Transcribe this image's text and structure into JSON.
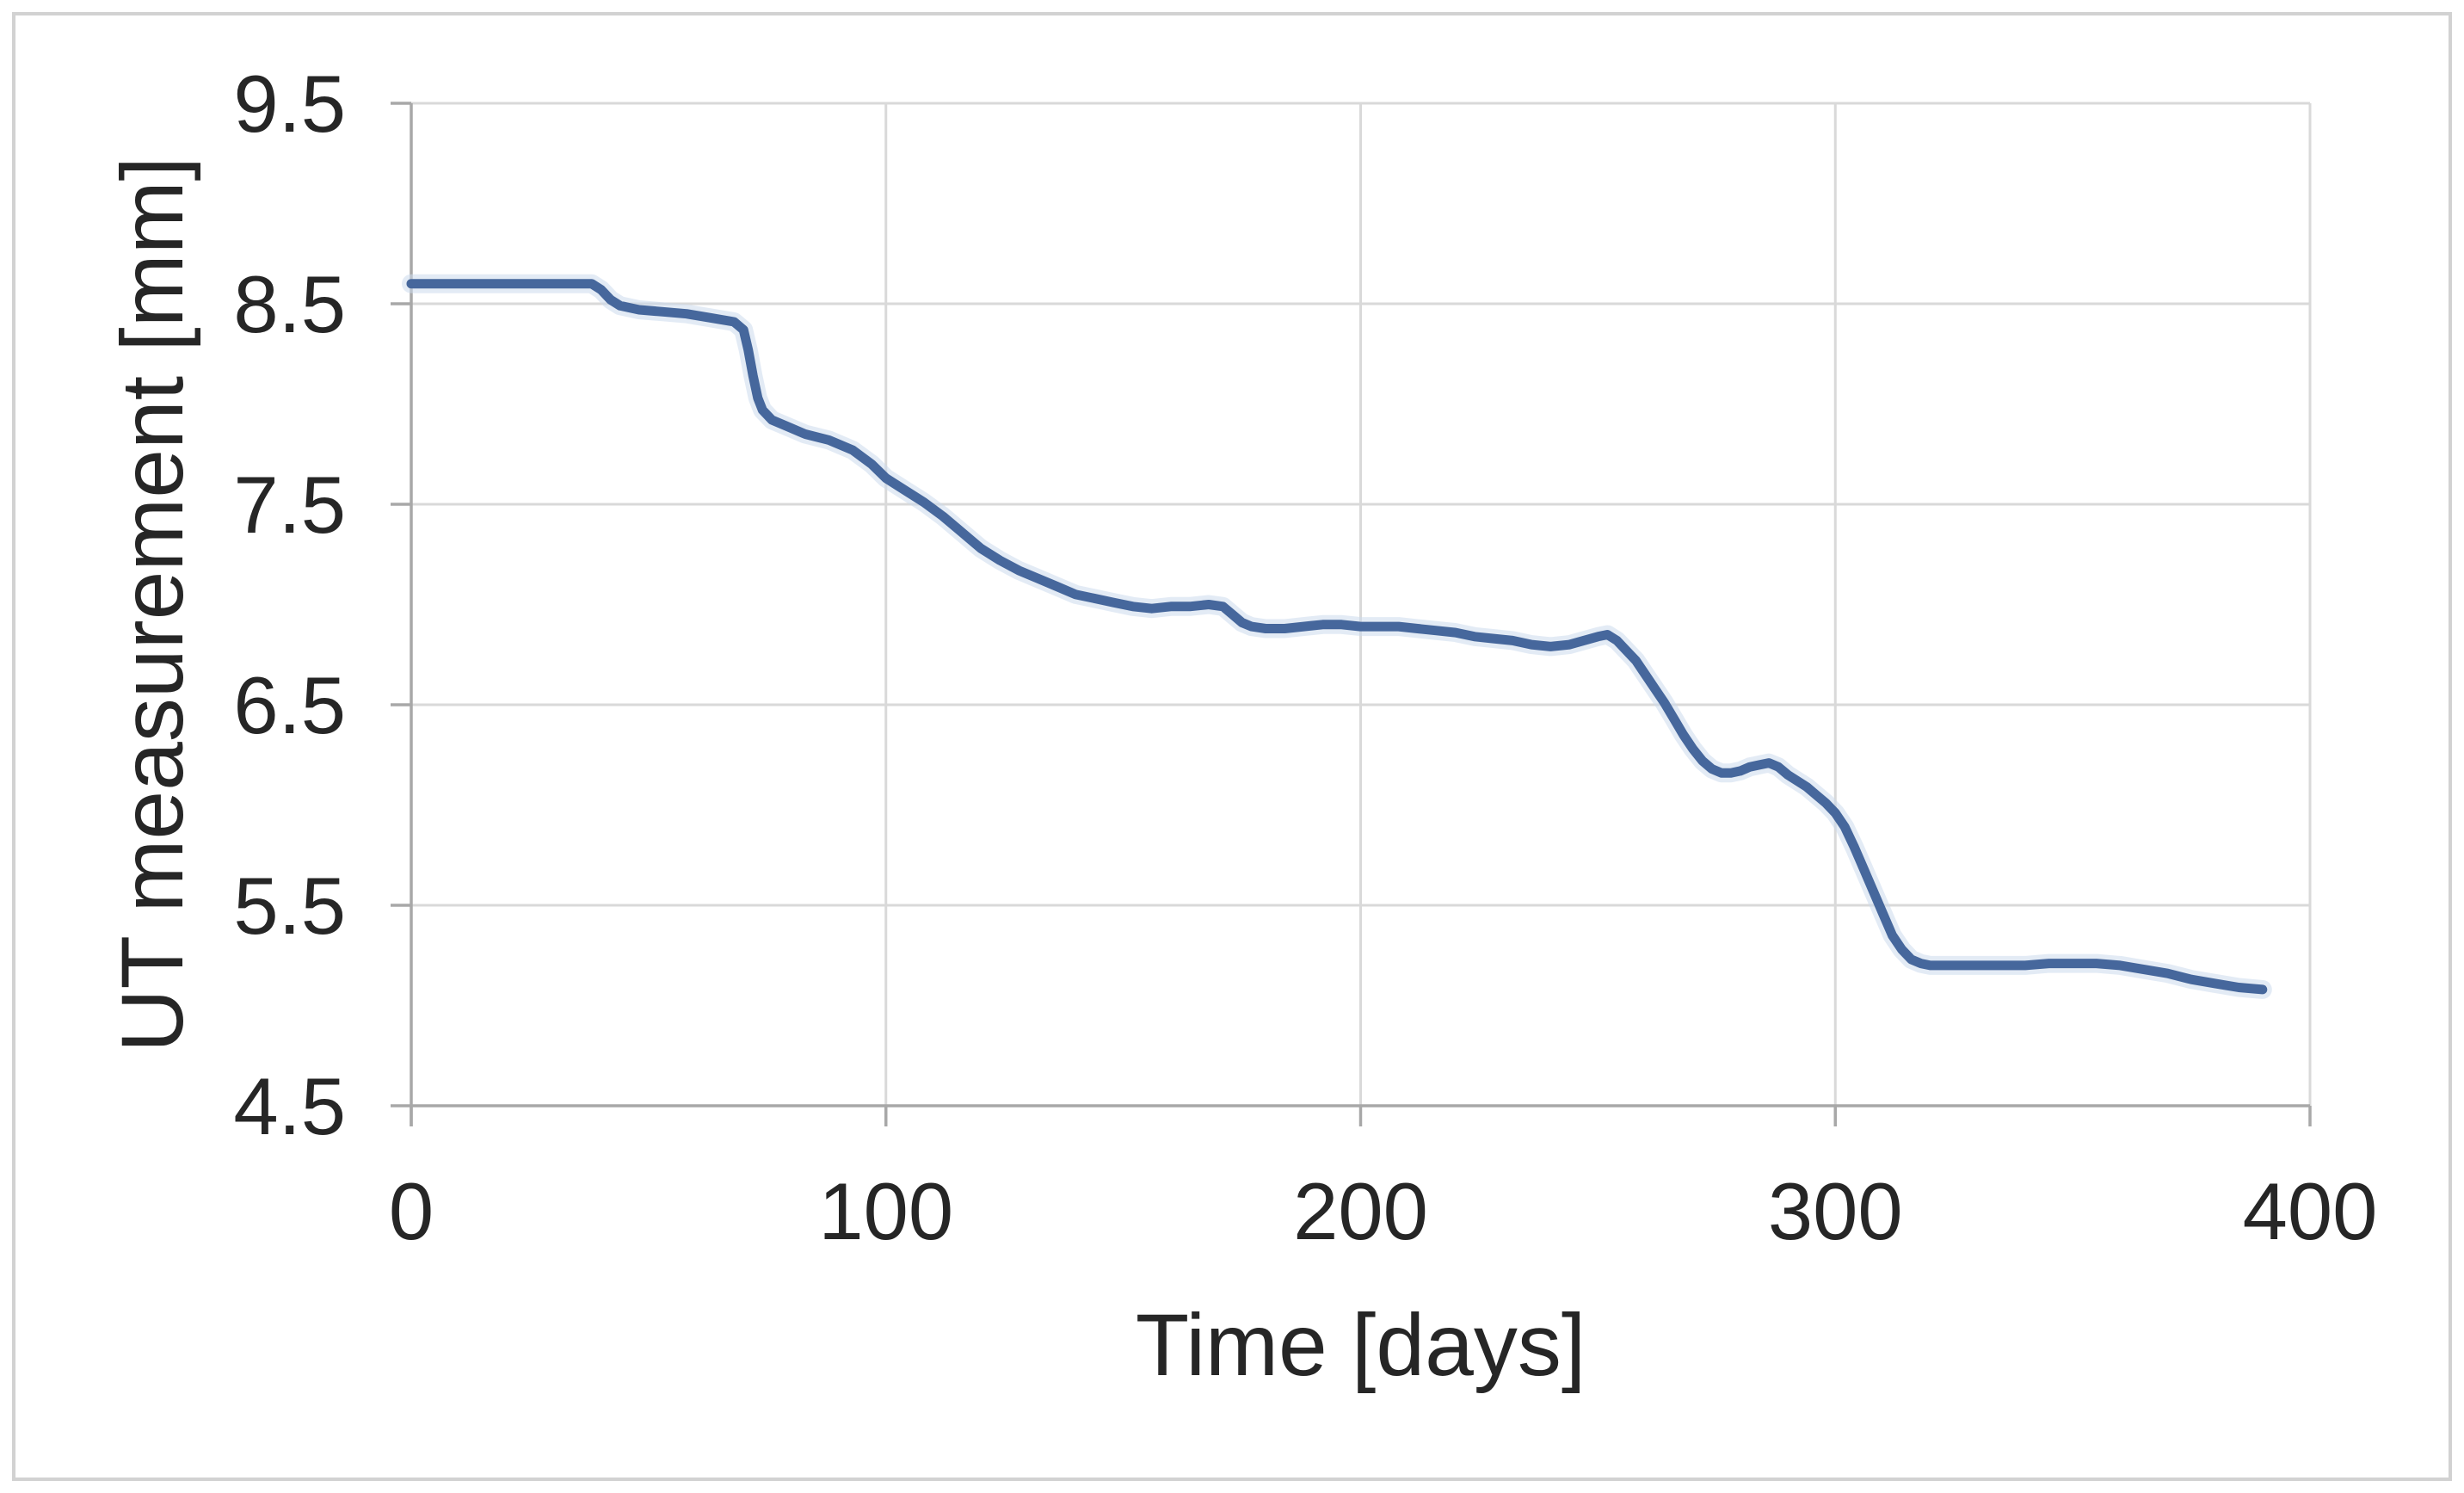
{
  "chart_data": {
    "type": "line",
    "title": "",
    "xlabel": "Time [days]",
    "ylabel": "UT measurement [mm]",
    "xlim": [
      0,
      400
    ],
    "ylim": [
      4.5,
      9.5
    ],
    "x_ticks": [
      0,
      100,
      200,
      300,
      400
    ],
    "y_ticks": [
      4.5,
      5.5,
      6.5,
      7.5,
      8.5,
      9.5
    ],
    "grid": true,
    "legend": false,
    "series": [
      {
        "name": "UT measurement",
        "points": [
          [
            0,
            8.6
          ],
          [
            10,
            8.6
          ],
          [
            20,
            8.6
          ],
          [
            30,
            8.6
          ],
          [
            38,
            8.6
          ],
          [
            40,
            8.57
          ],
          [
            42,
            8.52
          ],
          [
            44,
            8.49
          ],
          [
            48,
            8.47
          ],
          [
            53,
            8.46
          ],
          [
            58,
            8.45
          ],
          [
            63,
            8.43
          ],
          [
            68,
            8.41
          ],
          [
            70,
            8.37
          ],
          [
            71,
            8.27
          ],
          [
            72,
            8.14
          ],
          [
            73,
            8.03
          ],
          [
            74,
            7.97
          ],
          [
            76,
            7.92
          ],
          [
            79,
            7.89
          ],
          [
            83,
            7.85
          ],
          [
            88,
            7.82
          ],
          [
            93,
            7.77
          ],
          [
            97,
            7.7
          ],
          [
            100,
            7.63
          ],
          [
            104,
            7.57
          ],
          [
            108,
            7.51
          ],
          [
            112,
            7.44
          ],
          [
            116,
            7.36
          ],
          [
            120,
            7.28
          ],
          [
            124,
            7.22
          ],
          [
            128,
            7.17
          ],
          [
            132,
            7.13
          ],
          [
            136,
            7.09
          ],
          [
            140,
            7.05
          ],
          [
            144,
            7.03
          ],
          [
            148,
            7.01
          ],
          [
            152,
            6.99
          ],
          [
            156,
            6.98
          ],
          [
            160,
            6.99
          ],
          [
            164,
            6.99
          ],
          [
            168,
            7.0
          ],
          [
            171,
            6.99
          ],
          [
            173,
            6.95
          ],
          [
            175,
            6.91
          ],
          [
            177,
            6.89
          ],
          [
            180,
            6.88
          ],
          [
            184,
            6.88
          ],
          [
            188,
            6.89
          ],
          [
            192,
            6.9
          ],
          [
            196,
            6.9
          ],
          [
            200,
            6.89
          ],
          [
            204,
            6.89
          ],
          [
            208,
            6.89
          ],
          [
            212,
            6.88
          ],
          [
            216,
            6.87
          ],
          [
            220,
            6.86
          ],
          [
            224,
            6.84
          ],
          [
            228,
            6.83
          ],
          [
            232,
            6.82
          ],
          [
            236,
            6.8
          ],
          [
            240,
            6.79
          ],
          [
            244,
            6.8
          ],
          [
            247,
            6.82
          ],
          [
            250,
            6.84
          ],
          [
            252,
            6.85
          ],
          [
            254,
            6.82
          ],
          [
            256,
            6.77
          ],
          [
            258,
            6.72
          ],
          [
            260,
            6.65
          ],
          [
            262,
            6.58
          ],
          [
            264,
            6.51
          ],
          [
            266,
            6.43
          ],
          [
            268,
            6.35
          ],
          [
            270,
            6.28
          ],
          [
            272,
            6.22
          ],
          [
            274,
            6.18
          ],
          [
            276,
            6.16
          ],
          [
            278,
            6.16
          ],
          [
            280,
            6.17
          ],
          [
            282,
            6.19
          ],
          [
            284,
            6.2
          ],
          [
            286,
            6.21
          ],
          [
            288,
            6.19
          ],
          [
            290,
            6.15
          ],
          [
            292,
            6.12
          ],
          [
            294,
            6.09
          ],
          [
            296,
            6.05
          ],
          [
            298,
            6.01
          ],
          [
            300,
            5.96
          ],
          [
            302,
            5.89
          ],
          [
            304,
            5.79
          ],
          [
            306,
            5.68
          ],
          [
            308,
            5.57
          ],
          [
            310,
            5.46
          ],
          [
            312,
            5.35
          ],
          [
            314,
            5.28
          ],
          [
            316,
            5.23
          ],
          [
            318,
            5.21
          ],
          [
            320,
            5.2
          ],
          [
            325,
            5.2
          ],
          [
            330,
            5.2
          ],
          [
            335,
            5.2
          ],
          [
            340,
            5.2
          ],
          [
            345,
            5.21
          ],
          [
            350,
            5.21
          ],
          [
            355,
            5.21
          ],
          [
            360,
            5.2
          ],
          [
            365,
            5.18
          ],
          [
            370,
            5.16
          ],
          [
            375,
            5.13
          ],
          [
            380,
            5.11
          ],
          [
            385,
            5.09
          ],
          [
            390,
            5.08
          ]
        ]
      }
    ]
  },
  "colors": {
    "line": "#46679c",
    "line_halo": "#ccdaec",
    "gridline": "#d9d9d9",
    "axis": "#a8a8a8",
    "text": "#262626",
    "frame_border": "#d2d2d2",
    "background": "#ffffff"
  }
}
